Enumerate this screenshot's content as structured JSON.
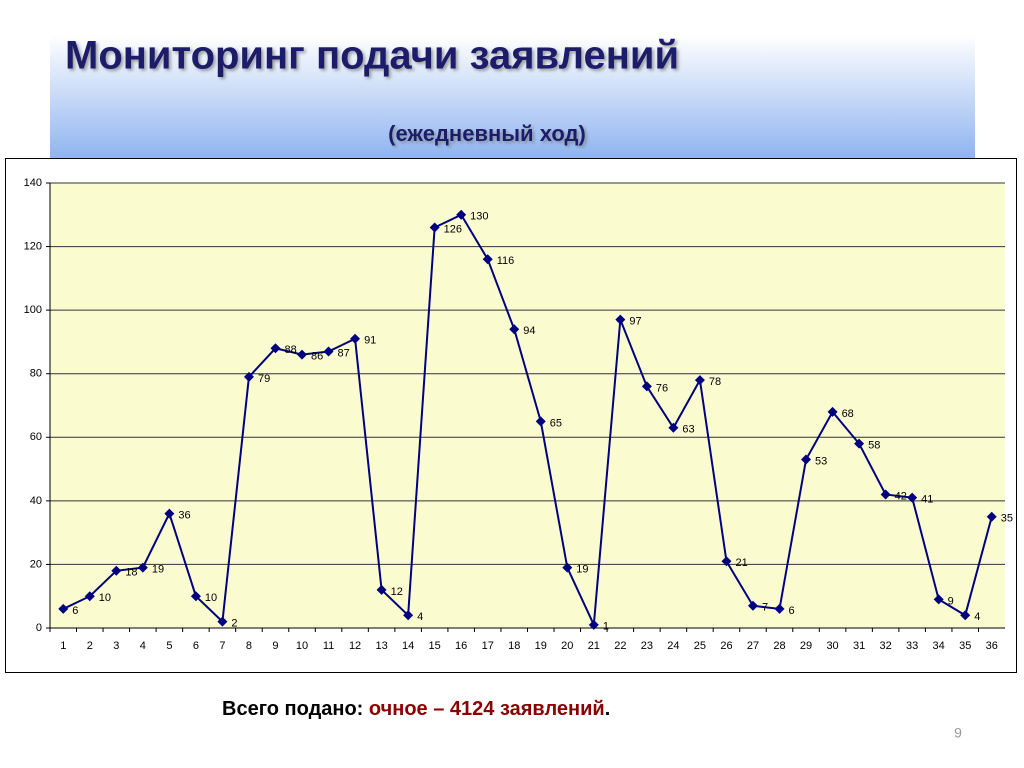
{
  "title": "Мониторинг подачи заявлений",
  "subtitle": "(ежедневный ход)",
  "chart_data": {
    "type": "line",
    "categories": [
      "1",
      "2",
      "3",
      "4",
      "5",
      "6",
      "7",
      "8",
      "9",
      "10",
      "11",
      "12",
      "13",
      "14",
      "15",
      "16",
      "17",
      "18",
      "19",
      "20",
      "21",
      "22",
      "23",
      "24",
      "25",
      "26",
      "27",
      "28",
      "29",
      "30",
      "31",
      "32",
      "33",
      "34",
      "35",
      "36"
    ],
    "values": [
      6,
      10,
      18,
      19,
      36,
      10,
      2,
      79,
      88,
      86,
      87,
      91,
      12,
      4,
      126,
      130,
      116,
      94,
      65,
      19,
      1,
      97,
      76,
      63,
      78,
      21,
      7,
      6,
      53,
      68,
      58,
      42,
      41,
      9,
      4,
      35
    ],
    "color": "#000080",
    "ylim": [
      0,
      140
    ],
    "yticks": [
      0,
      20,
      40,
      60,
      80,
      100,
      120,
      140
    ],
    "grid": true,
    "data_labels": true
  },
  "footer": {
    "label": "Всего подано: ",
    "value": "очное – 4124 заявлений",
    "end": "."
  },
  "page_number": "9"
}
